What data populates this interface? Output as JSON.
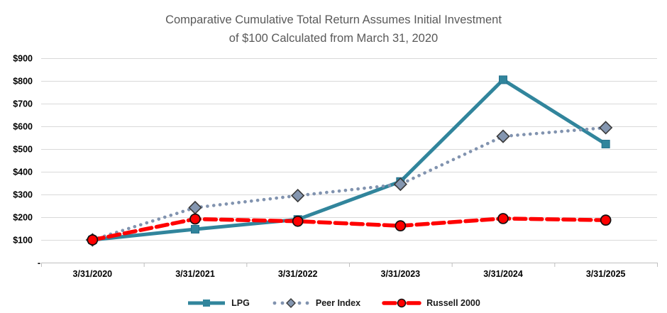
{
  "title": {
    "line1": "Comparative Cumulative Total Return Assumes Initial Investment",
    "line2": "of $100 Calculated from March 31, 2020"
  },
  "colors": {
    "grid": "#d9d9d9",
    "axis": "#bfbfbf",
    "title_text": "#595959",
    "tick_text": "#000000",
    "lpg": "#31859c",
    "peer": "#8496b0",
    "russell": "#ff0000"
  },
  "chart_data": {
    "type": "line",
    "title": "Comparative Cumulative Total Return Assumes Initial Investment of $100 Calculated from March 31, 2020",
    "xlabel": "",
    "ylabel": "",
    "categories": [
      "3/31/2020",
      "3/31/2021",
      "3/31/2022",
      "3/31/2023",
      "3/31/2024",
      "3/31/2025"
    ],
    "series": [
      {
        "name": "LPG",
        "values": [
          100,
          147,
          190,
          357,
          805,
          522
        ],
        "color": "#31859c",
        "line_style": "solid",
        "marker": "square",
        "marker_fill": "#31859c",
        "marker_stroke": "#26708c"
      },
      {
        "name": "Peer Index",
        "values": [
          100,
          242,
          295,
          345,
          556,
          594
        ],
        "color": "#8193af",
        "line_style": "dotted",
        "marker": "diamond",
        "marker_fill": "#8496b0",
        "marker_stroke": "#3a3a3a"
      },
      {
        "name": "Russell 2000",
        "values": [
          100,
          192,
          182,
          162,
          194,
          187
        ],
        "color": "#ff0000",
        "line_style": "dashed",
        "marker": "circle",
        "marker_fill": "#ff0000",
        "marker_stroke": "#111111"
      }
    ],
    "ylim": [
      0,
      900
    ],
    "y_ticks": [
      {
        "value": 900,
        "label": "$900"
      },
      {
        "value": 800,
        "label": "$800"
      },
      {
        "value": 700,
        "label": "$700"
      },
      {
        "value": 600,
        "label": "$600"
      },
      {
        "value": 500,
        "label": "$500"
      },
      {
        "value": 400,
        "label": "$400"
      },
      {
        "value": 300,
        "label": "$300"
      },
      {
        "value": 200,
        "label": "$200"
      },
      {
        "value": 100,
        "label": "$100"
      },
      {
        "value": 0,
        "label": "-"
      }
    ],
    "grid": true,
    "legend_position": "bottom"
  }
}
